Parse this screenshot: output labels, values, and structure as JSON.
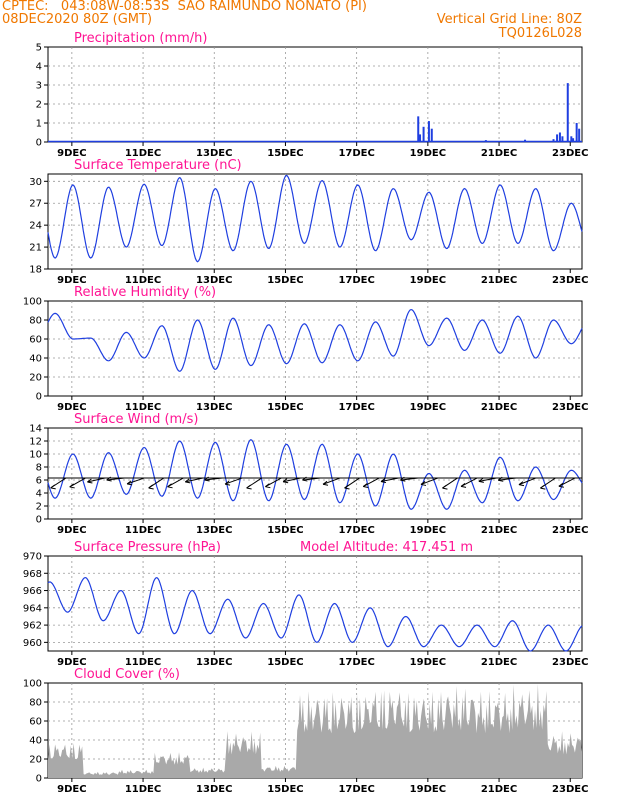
{
  "header": {
    "line1": "CPTEC:   043:08W-08:53S  SAO RAIMUNDO NONATO (PI)",
    "line2": "08DEC2020 80Z (GMT)",
    "grid_note": "Vertical Grid Line: 80Z",
    "code": "TQ0126L028"
  },
  "colors": {
    "header": "#f07800",
    "title": "#ff1493",
    "line": "#1f3fe0",
    "cloud": "#a9a9a9",
    "wind": "#000000"
  },
  "x_ticks": [
    "9DEC",
    "11DEC",
    "13DEC",
    "15DEC",
    "17DEC",
    "19DEC",
    "21DEC",
    "23DEC"
  ],
  "chart_data": [
    {
      "type": "bar",
      "title": "Precipitation (mm/h)",
      "ylim": [
        0,
        5
      ],
      "yticks": [
        0,
        1,
        2,
        3,
        4,
        5
      ],
      "x_range": [
        "08DEC 08Z",
        "23DEC 00Z"
      ],
      "bars": [
        {
          "t": 0.8,
          "v": 0.03
        },
        {
          "t": 2.2,
          "v": 0.03
        },
        {
          "t": 3.6,
          "v": 0.02
        },
        {
          "t": 5.9,
          "v": 0.03
        },
        {
          "t": 8.9,
          "v": 0.02
        },
        {
          "t": 10.2,
          "v": 0.05
        },
        {
          "t": 10.4,
          "v": 1.35
        },
        {
          "t": 10.45,
          "v": 0.4
        },
        {
          "t": 10.55,
          "v": 0.8
        },
        {
          "t": 10.7,
          "v": 1.1
        },
        {
          "t": 10.78,
          "v": 0.7
        },
        {
          "t": 11.2,
          "v": 0.05
        },
        {
          "t": 12.3,
          "v": 0.1
        },
        {
          "t": 13.0,
          "v": 0.04
        },
        {
          "t": 13.4,
          "v": 0.12
        },
        {
          "t": 13.6,
          "v": 0.05
        },
        {
          "t": 14.2,
          "v": 0.15
        },
        {
          "t": 14.3,
          "v": 0.4
        },
        {
          "t": 14.38,
          "v": 0.5
        },
        {
          "t": 14.45,
          "v": 0.3
        },
        {
          "t": 14.6,
          "v": 3.1
        },
        {
          "t": 14.7,
          "v": 0.3
        },
        {
          "t": 14.75,
          "v": 0.2
        },
        {
          "t": 14.85,
          "v": 1.0
        },
        {
          "t": 14.92,
          "v": 0.7
        }
      ]
    },
    {
      "type": "line",
      "title": "Surface Temperature (nC)",
      "ylim": [
        18,
        31
      ],
      "yticks": [
        18,
        21,
        24,
        27,
        30
      ],
      "daily_max": [
        29.5,
        29.2,
        29.6,
        30.5,
        29.0,
        30.0,
        30.8,
        30.1,
        29.5,
        29.0,
        28.5,
        29.0,
        29.5,
        29.0,
        27.0
      ],
      "daily_min": [
        19.5,
        21.0,
        21.2,
        19.0,
        20.5,
        20.8,
        21.5,
        21.0,
        20.5,
        22.0,
        20.8,
        21.5,
        21.5,
        20.5,
        21.0
      ]
    },
    {
      "type": "line",
      "title": "Relative Humidity (%)",
      "ylim": [
        0,
        100
      ],
      "yticks": [
        0,
        20,
        40,
        60,
        80,
        100
      ],
      "daily_max": [
        87,
        61,
        67,
        74,
        80,
        82,
        75,
        76,
        75,
        78,
        91,
        82,
        80,
        84,
        80
      ],
      "daily_min": [
        60,
        37,
        40,
        26,
        28,
        32,
        34,
        35,
        37,
        42,
        53,
        48,
        45,
        40,
        55
      ]
    },
    {
      "type": "line",
      "title": "Surface Wind (m/s)",
      "ylim": [
        0,
        14
      ],
      "yticks": [
        0,
        2,
        4,
        6,
        8,
        10,
        12,
        14
      ],
      "daily_max": [
        10.0,
        10.2,
        11.0,
        12.0,
        11.8,
        12.2,
        11.5,
        11.5,
        10.0,
        10.0,
        7.0,
        7.5,
        9.5,
        8.0,
        7.5
      ],
      "daily_min": [
        3.2,
        3.8,
        3.5,
        3.2,
        2.8,
        2.8,
        3.0,
        2.5,
        2.0,
        1.5,
        1.5,
        2.5,
        2.8,
        3.0,
        4.5
      ]
    },
    {
      "type": "line",
      "title": "Surface Pressure (hPa)",
      "annotation": "Model Altitude: 417.451  m",
      "ylim": [
        959,
        970
      ],
      "yticks": [
        960,
        962,
        964,
        966,
        968,
        970
      ],
      "daily_max": [
        967.0,
        967.5,
        966.0,
        967.5,
        966.0,
        965.0,
        964.5,
        965.5,
        964.5,
        964.0,
        963.0,
        962.0,
        962.0,
        962.5,
        962.0
      ],
      "daily_min": [
        963.5,
        962.5,
        961.0,
        961.0,
        961.0,
        960.5,
        960.5,
        960.0,
        960.0,
        959.5,
        959.5,
        959.5,
        959.5,
        959.0,
        959.0
      ]
    },
    {
      "type": "area",
      "title": "Cloud Cover (%)",
      "ylim": [
        0,
        100
      ],
      "yticks": [
        0,
        20,
        40,
        60,
        80,
        100
      ],
      "daily_level": [
        35,
        6,
        8,
        25,
        10,
        45,
        12,
        85,
        85,
        90,
        85,
        90,
        85,
        90,
        45
      ]
    }
  ]
}
